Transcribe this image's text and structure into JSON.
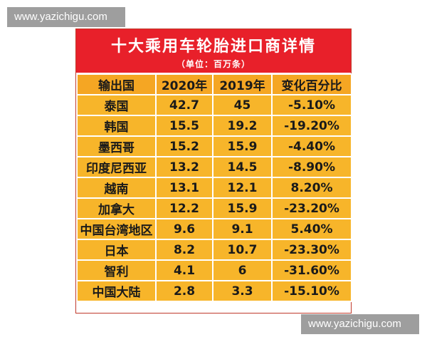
{
  "watermarks": {
    "top": "www.yazichigu.com",
    "bottom": "www.yazichigu.com"
  },
  "title": "十大乘用车轮胎进口商详情",
  "subtitle": "（单位：百万条）",
  "headers": [
    "输出国",
    "2020年",
    "2019年",
    "变化百分比"
  ],
  "rows": [
    [
      "泰国",
      "42.7",
      "45",
      "-5.10%"
    ],
    [
      "韩国",
      "15.5",
      "19.2",
      "-19.20%"
    ],
    [
      "墨西哥",
      "15.2",
      "15.9",
      "-4.40%"
    ],
    [
      "印度尼西亚",
      "13.2",
      "14.5",
      "-8.90%"
    ],
    [
      "越南",
      "13.1",
      "12.1",
      "8.20%"
    ],
    [
      "加拿大",
      "12.2",
      "15.9",
      "-23.20%"
    ],
    [
      "中国台湾地区",
      "9.6",
      "9.1",
      "5.40%"
    ],
    [
      "日本",
      "8.2",
      "10.7",
      "-23.30%"
    ],
    [
      "智利",
      "4.1",
      "6",
      "-31.60%"
    ],
    [
      "中国大陆",
      "2.8",
      "3.3",
      "-15.10%"
    ]
  ],
  "colors": {
    "header": "#e8202a",
    "cell": "#f7b52a",
    "watermark": "#9e9e9e"
  }
}
